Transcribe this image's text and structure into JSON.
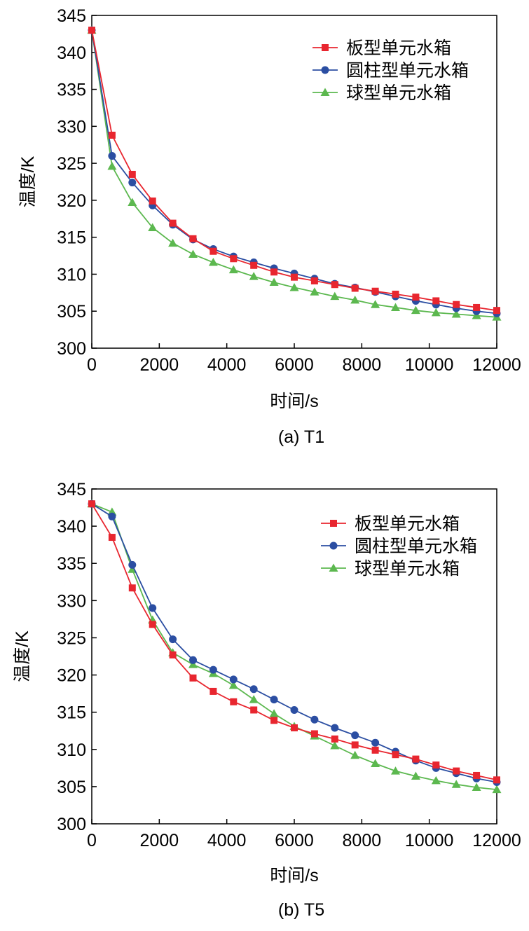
{
  "chart_data": [
    {
      "type": "line",
      "caption": "(a) T1",
      "xlabel": "时间/s",
      "ylabel": "温度/K",
      "xlim": [
        0,
        12000
      ],
      "ylim": [
        300,
        345
      ],
      "xticks": [
        0,
        2000,
        4000,
        6000,
        8000,
        10000,
        12000
      ],
      "yticks": [
        300,
        305,
        310,
        315,
        320,
        325,
        330,
        335,
        340,
        345
      ],
      "legend_position": "top-right",
      "x": [
        0,
        600,
        1200,
        1800,
        2400,
        3000,
        3600,
        4200,
        4800,
        5400,
        6000,
        6600,
        7200,
        7800,
        8400,
        9000,
        9600,
        10200,
        10800,
        11400,
        12000
      ],
      "series": [
        {
          "name": "板型单元水箱",
          "color": "#e8262f",
          "marker": "square",
          "values": [
            343.0,
            328.8,
            323.5,
            319.9,
            316.9,
            314.8,
            313.1,
            312.1,
            311.2,
            310.3,
            309.6,
            309.1,
            308.6,
            308.1,
            307.7,
            307.3,
            306.9,
            306.4,
            305.9,
            305.5,
            305.1
          ]
        },
        {
          "name": "圆柱型单元水箱",
          "color": "#2b4ea2",
          "marker": "circle",
          "values": [
            343.0,
            326.0,
            322.4,
            319.3,
            316.7,
            314.7,
            313.4,
            312.4,
            311.6,
            310.8,
            310.1,
            309.4,
            308.7,
            308.2,
            307.6,
            307.0,
            306.4,
            305.9,
            305.4,
            305.0,
            304.7
          ]
        },
        {
          "name": "球型单元水箱",
          "color": "#5cb84f",
          "marker": "triangle",
          "values": [
            343.0,
            324.6,
            319.7,
            316.3,
            314.2,
            312.7,
            311.6,
            310.6,
            309.7,
            308.9,
            308.2,
            307.6,
            307.0,
            306.5,
            305.9,
            305.5,
            305.1,
            304.8,
            304.6,
            304.4,
            304.2
          ]
        }
      ]
    },
    {
      "type": "line",
      "caption": "(b) T5",
      "xlabel": "时间/s",
      "ylabel": "温度/K",
      "xlim": [
        0,
        12000
      ],
      "ylim": [
        300,
        345
      ],
      "xticks": [
        0,
        2000,
        4000,
        6000,
        8000,
        10000,
        12000
      ],
      "yticks": [
        300,
        305,
        310,
        315,
        320,
        325,
        330,
        335,
        340,
        345
      ],
      "legend_position": "top-right",
      "x": [
        0,
        600,
        1200,
        1800,
        2400,
        3000,
        3600,
        4200,
        4800,
        5400,
        6000,
        6600,
        7200,
        7800,
        8400,
        9000,
        9600,
        10200,
        10800,
        11400,
        12000
      ],
      "series": [
        {
          "name": "板型单元水箱",
          "color": "#e8262f",
          "marker": "square",
          "values": [
            343.0,
            338.5,
            331.7,
            326.8,
            322.7,
            319.6,
            317.8,
            316.4,
            315.3,
            313.9,
            312.9,
            312.1,
            311.4,
            310.6,
            309.9,
            309.3,
            308.7,
            307.9,
            307.1,
            306.5,
            305.9
          ]
        },
        {
          "name": "圆柱型单元水箱",
          "color": "#2b4ea2",
          "marker": "circle",
          "values": [
            343.0,
            341.3,
            334.8,
            329.0,
            324.8,
            322.0,
            320.7,
            319.4,
            318.1,
            316.7,
            315.3,
            314.0,
            312.9,
            311.9,
            310.9,
            309.7,
            308.5,
            307.5,
            306.8,
            306.1,
            305.6
          ]
        },
        {
          "name": "球型单元水箱",
          "color": "#5cb84f",
          "marker": "triangle",
          "values": [
            343.0,
            341.9,
            334.2,
            327.4,
            323.0,
            321.4,
            320.2,
            318.6,
            316.7,
            314.8,
            313.1,
            311.8,
            310.5,
            309.2,
            308.1,
            307.1,
            306.4,
            305.8,
            305.3,
            304.9,
            304.6
          ]
        }
      ]
    }
  ]
}
